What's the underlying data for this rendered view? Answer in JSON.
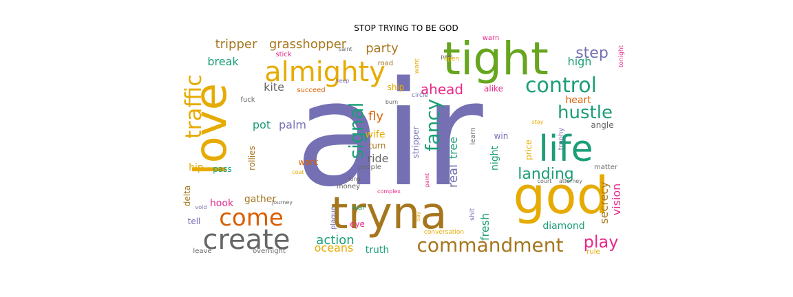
{
  "title": "STOP TRYING TO BE GOD",
  "palette": {
    "purple": "#7570b3",
    "green": "#66a61e",
    "gold": "#e6ab02",
    "brown": "#a6761d",
    "teal": "#1b9e77",
    "orange": "#d95f02",
    "pink": "#e7298a",
    "gray": "#666666"
  },
  "words": [
    {
      "text": "air",
      "color": "purple"
    },
    {
      "text": "tight",
      "color": "green"
    },
    {
      "text": "love",
      "color": "gold"
    },
    {
      "text": "god",
      "color": "gold"
    },
    {
      "text": "tryna",
      "color": "brown"
    },
    {
      "text": "life",
      "color": "teal"
    },
    {
      "text": "almighty",
      "color": "gold"
    },
    {
      "text": "create",
      "color": "gray"
    },
    {
      "text": "commandment",
      "color": "brown"
    },
    {
      "text": "come",
      "color": "orange"
    },
    {
      "text": "control",
      "color": "teal"
    },
    {
      "text": "traffic",
      "color": "gold"
    },
    {
      "text": "signal",
      "color": "teal"
    },
    {
      "text": "fancy",
      "color": "teal"
    },
    {
      "text": "hustle",
      "color": "teal"
    },
    {
      "text": "step",
      "color": "purple"
    },
    {
      "text": "play",
      "color": "pink"
    },
    {
      "text": "landing",
      "color": "teal"
    },
    {
      "text": "tripper",
      "color": "brown"
    },
    {
      "text": "grasshopper",
      "color": "brown"
    },
    {
      "text": "ahead",
      "color": "pink"
    },
    {
      "text": "party",
      "color": "brown"
    },
    {
      "text": "break",
      "color": "teal"
    },
    {
      "text": "action",
      "color": "teal"
    },
    {
      "text": "real",
      "color": "purple"
    },
    {
      "text": "tree",
      "color": "teal"
    },
    {
      "text": "fresh",
      "color": "teal"
    },
    {
      "text": "vision",
      "color": "pink"
    },
    {
      "text": "secrecy",
      "color": "brown"
    },
    {
      "text": "palm",
      "color": "purple"
    },
    {
      "text": "pot",
      "color": "teal"
    },
    {
      "text": "fly",
      "color": "orange"
    },
    {
      "text": "ride",
      "color": "gray"
    },
    {
      "text": "night",
      "color": "teal"
    },
    {
      "text": "heart",
      "color": "orange"
    },
    {
      "text": "high",
      "color": "teal"
    },
    {
      "text": "kite",
      "color": "gray"
    },
    {
      "text": "oceans",
      "color": "gold"
    },
    {
      "text": "diamond",
      "color": "teal"
    },
    {
      "text": "gather",
      "color": "brown"
    },
    {
      "text": "hook",
      "color": "pink"
    },
    {
      "text": "truth",
      "color": "teal"
    },
    {
      "text": "hip",
      "color": "gold"
    },
    {
      "text": "work",
      "color": "orange"
    },
    {
      "text": "wife",
      "color": "gold"
    },
    {
      "text": "ship",
      "color": "gold"
    },
    {
      "text": "alike",
      "color": "pink"
    },
    {
      "text": "tell",
      "color": "purple"
    },
    {
      "text": "delta",
      "color": "brown"
    },
    {
      "text": "price",
      "color": "gold"
    },
    {
      "text": "rollies",
      "color": "brown"
    },
    {
      "text": "stripper",
      "color": "purple"
    },
    {
      "text": "turn",
      "color": "brown"
    },
    {
      "text": "pass",
      "color": "teal"
    },
    {
      "text": "eye",
      "color": "pink"
    },
    {
      "text": "war",
      "color": "teal"
    },
    {
      "text": "shit",
      "color": "purple"
    },
    {
      "text": "win",
      "color": "purple"
    },
    {
      "text": "angle",
      "color": "gray"
    },
    {
      "text": "learn",
      "color": "gray"
    },
    {
      "text": "trophy",
      "color": "purple"
    },
    {
      "text": "matter",
      "color": "gray"
    },
    {
      "text": "people",
      "color": "gray"
    },
    {
      "text": "money",
      "color": "gray"
    },
    {
      "text": "succeed",
      "color": "orange"
    },
    {
      "text": "fuck",
      "color": "gray"
    },
    {
      "text": "stick",
      "color": "pink"
    },
    {
      "text": "road",
      "color": "brown"
    },
    {
      "text": "want",
      "color": "gold"
    },
    {
      "text": "saint",
      "color": "gray"
    },
    {
      "text": "keep",
      "color": "purple"
    },
    {
      "text": "burn",
      "color": "gray"
    },
    {
      "text": "circle",
      "color": "purple"
    },
    {
      "text": "peel",
      "color": "gray"
    },
    {
      "text": "open",
      "color": "gold"
    },
    {
      "text": "warn",
      "color": "pink"
    },
    {
      "text": "tonight",
      "color": "pink"
    },
    {
      "text": "stay",
      "color": "gold"
    },
    {
      "text": "court",
      "color": "gray"
    },
    {
      "text": "attorney",
      "color": "gray"
    },
    {
      "text": "complex",
      "color": "pink"
    },
    {
      "text": "plaque",
      "color": "purple"
    },
    {
      "text": "day",
      "color": "gold"
    },
    {
      "text": "conversation",
      "color": "gold"
    },
    {
      "text": "overnight",
      "color": "gray"
    },
    {
      "text": "leave",
      "color": "gray"
    },
    {
      "text": "rule",
      "color": "gold"
    },
    {
      "text": "journey",
      "color": "gray"
    },
    {
      "text": "void",
      "color": "purple"
    },
    {
      "text": "coat",
      "color": "gold"
    },
    {
      "text": "long",
      "color": "gray"
    },
    {
      "text": "paint",
      "color": "pink"
    }
  ]
}
